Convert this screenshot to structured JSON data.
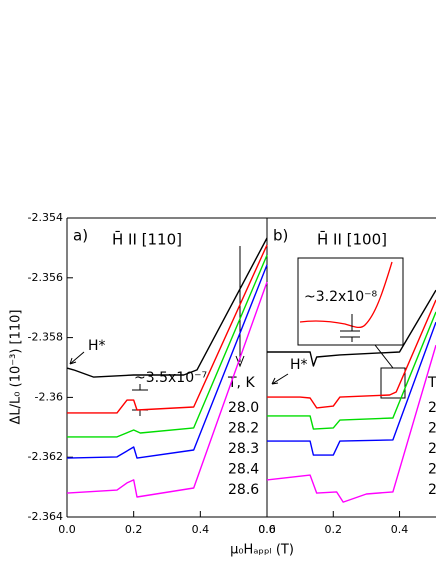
{
  "chart_data": [
    {
      "type": "line",
      "panel_label": "a)",
      "title": "H̄ II [110]",
      "x_label": "μ₀Hₐₚₚₗ (T)",
      "y_label": "ΔL/L₀ (10⁻³) [110]",
      "annotations": [
        "H*",
        "~3.5x10⁻⁷"
      ],
      "legend_title": "T, K",
      "xlim": [
        0,
        0.6
      ],
      "xticks": [
        {
          "value": 0,
          "label": "0.0"
        },
        0.2,
        0.4,
        0.6
      ],
      "ylim": [
        -2.364,
        -2.354
      ],
      "yticks": [
        -2.364,
        -2.362,
        -2.36,
        -2.358,
        -2.356,
        -2.354
      ],
      "series": [
        {
          "name": "28.0",
          "color": "#000000",
          "x": [
            0,
            0.02,
            0.08,
            0.2,
            0.35,
            0.39,
            0.6
          ],
          "values": [
            -2.35902,
            -2.35908,
            -2.35932,
            -2.35925,
            -2.35925,
            -2.35908,
            -2.35467
          ]
        },
        {
          "name": "28.2",
          "color": "#ff0000",
          "x": [
            0,
            0.15,
            0.18,
            0.2,
            0.21,
            0.38,
            0.6
          ],
          "values": [
            -2.36052,
            -2.36052,
            -2.36009,
            -2.36009,
            -2.36042,
            -2.36032,
            -2.3549
          ]
        },
        {
          "name": "28.3",
          "color": "#00dd00",
          "x": [
            0,
            0.15,
            0.2,
            0.22,
            0.38,
            0.6
          ],
          "values": [
            -2.36132,
            -2.36132,
            -2.36109,
            -2.36119,
            -2.36102,
            -2.35524
          ]
        },
        {
          "name": "28.4",
          "color": "#0000ff",
          "x": [
            0,
            0.15,
            0.2,
            0.21,
            0.38,
            0.6
          ],
          "values": [
            -2.36203,
            -2.36199,
            -2.36166,
            -2.36203,
            -2.36176,
            -2.35557
          ]
        },
        {
          "name": "28.6",
          "color": "#ff00ff",
          "x": [
            0,
            0.15,
            0.18,
            0.2,
            0.21,
            0.38,
            0.6
          ],
          "values": [
            -2.3632,
            -2.3631,
            -2.36286,
            -2.36276,
            -2.36333,
            -2.36303,
            -2.35614
          ]
        }
      ]
    },
    {
      "type": "line",
      "panel_label": "b)",
      "title": "H̄ II [100]",
      "annotations": [
        "H*",
        "~3.2x10⁻⁸"
      ],
      "legend_title": "T",
      "xlim": [
        0,
        0.51
      ],
      "xticks": [
        {
          "value": 0,
          "label": "0.0"
        },
        0.2,
        0.4
      ],
      "ylim": [
        -2.364,
        -2.354
      ],
      "series": [
        {
          "name": "2",
          "color": "#000000",
          "x": [
            0,
            0.13,
            0.14,
            0.15,
            0.22,
            0.4,
            0.51
          ],
          "values": [
            -2.35848,
            -2.35848,
            -2.35895,
            -2.35865,
            -2.35858,
            -2.35848,
            -2.35641
          ]
        },
        {
          "name": "2",
          "color": "#ff0000",
          "x": [
            0,
            0.1,
            0.13,
            0.15,
            0.2,
            0.22,
            0.37,
            0.39,
            0.51
          ],
          "values": [
            -2.35999,
            -2.35999,
            -2.36002,
            -2.36035,
            -2.36029,
            -2.35999,
            -2.35992,
            -2.35982,
            -2.35674
          ]
        },
        {
          "name": "2",
          "color": "#00dd00",
          "x": [
            0,
            0.13,
            0.14,
            0.2,
            0.22,
            0.38,
            0.51
          ],
          "values": [
            -2.36062,
            -2.36062,
            -2.36106,
            -2.36102,
            -2.36076,
            -2.36069,
            -2.35714
          ]
        },
        {
          "name": "2",
          "color": "#0000ff",
          "x": [
            0,
            0.13,
            0.14,
            0.2,
            0.22,
            0.38,
            0.51
          ],
          "values": [
            -2.36146,
            -2.36146,
            -2.36193,
            -2.36193,
            -2.36146,
            -2.36142,
            -2.35748
          ]
        },
        {
          "name": "2",
          "color": "#ff00ff",
          "x": [
            0,
            0.13,
            0.15,
            0.21,
            0.23,
            0.3,
            0.38,
            0.51
          ],
          "values": [
            -2.36276,
            -2.3626,
            -2.3632,
            -2.36316,
            -2.3635,
            -2.36323,
            -2.36316,
            -2.35825
          ]
        }
      ]
    }
  ]
}
